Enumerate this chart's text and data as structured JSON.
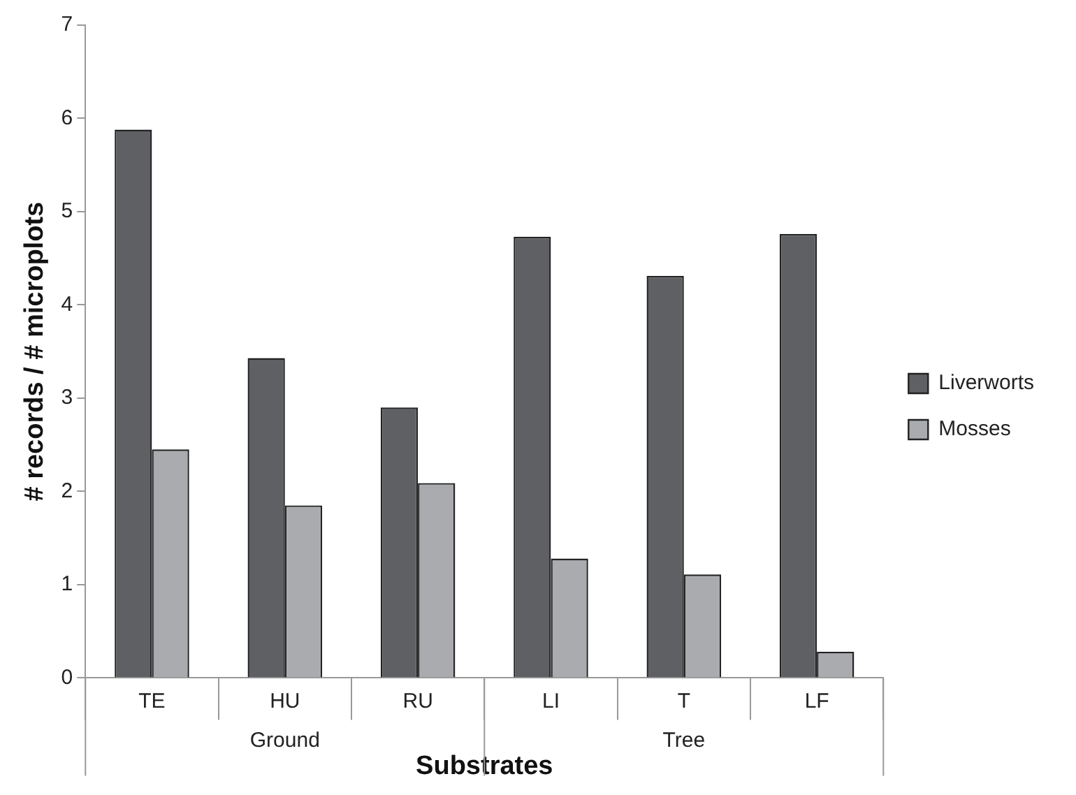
{
  "chart_data": {
    "type": "bar",
    "xlabel": "Substrates",
    "ylabel": "# records / # microplots",
    "categories": [
      "TE",
      "HU",
      "RU",
      "LI",
      "T",
      "LF"
    ],
    "series": [
      {
        "name": "Liverworts",
        "color": "#5f6064",
        "values": [
          5.88,
          3.43,
          2.9,
          4.73,
          4.31,
          4.76
        ]
      },
      {
        "name": "Mosses",
        "color": "#a9abae",
        "values": [
          2.45,
          1.85,
          2.09,
          1.28,
          1.11,
          0.28
        ]
      }
    ],
    "ylim": [
      0,
      7
    ],
    "yticks": [
      0,
      1,
      2,
      3,
      4,
      5,
      6,
      7
    ],
    "grid": false,
    "legend": "right",
    "annotations": [
      "Ground",
      "Tree"
    ]
  }
}
